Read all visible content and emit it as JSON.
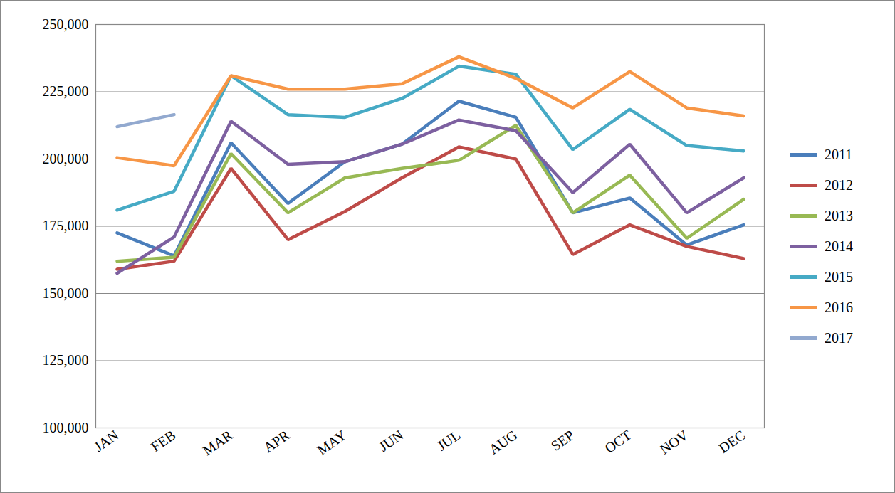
{
  "chart_data": {
    "type": "line",
    "categories": [
      "JAN",
      "FEB",
      "MAR",
      "APR",
      "MAY",
      "JUN",
      "JUL",
      "AUG",
      "SEP",
      "OCT",
      "NOV",
      "DEC"
    ],
    "series": [
      {
        "name": "2011",
        "color": "#4a7ebb",
        "values": [
          172500,
          164000,
          206000,
          183500,
          199000,
          205500,
          221500,
          215500,
          180000,
          185500,
          168000,
          175500
        ]
      },
      {
        "name": "2012",
        "color": "#be4b48",
        "values": [
          159000,
          162000,
          196500,
          170000,
          180500,
          193000,
          204500,
          200000,
          164500,
          175500,
          167500,
          163000
        ]
      },
      {
        "name": "2013",
        "color": "#98b954",
        "values": [
          162000,
          163500,
          202000,
          180000,
          193000,
          196500,
          199500,
          212500,
          180000,
          194000,
          170500,
          185000
        ]
      },
      {
        "name": "2014",
        "color": "#7d60a0",
        "values": [
          157500,
          171000,
          214000,
          198000,
          199000,
          205500,
          214500,
          210500,
          187500,
          205500,
          180000,
          193000
        ]
      },
      {
        "name": "2015",
        "color": "#46aac5",
        "values": [
          181000,
          188000,
          231000,
          216500,
          215500,
          222500,
          234500,
          231500,
          203500,
          218500,
          205000,
          203000
        ]
      },
      {
        "name": "2016",
        "color": "#f79646",
        "values": [
          200500,
          197500,
          231000,
          226000,
          226000,
          228000,
          238000,
          230000,
          219000,
          232500,
          219000,
          216000
        ]
      },
      {
        "name": "2017",
        "color": "#92a9cf",
        "values": [
          212000,
          216500,
          null,
          null,
          null,
          null,
          null,
          null,
          null,
          null,
          null,
          null
        ]
      }
    ],
    "ylim": [
      100000,
      250000
    ],
    "yticks": [
      {
        "value": 100000,
        "label": "100,000"
      },
      {
        "value": 125000,
        "label": "125,000"
      },
      {
        "value": 150000,
        "label": "150,000"
      },
      {
        "value": 175000,
        "label": "175,000"
      },
      {
        "value": 200000,
        "label": "200,000"
      },
      {
        "value": 225000,
        "label": "225,000"
      },
      {
        "value": 250000,
        "label": "250,000"
      }
    ],
    "grid": true,
    "legend": "right"
  }
}
